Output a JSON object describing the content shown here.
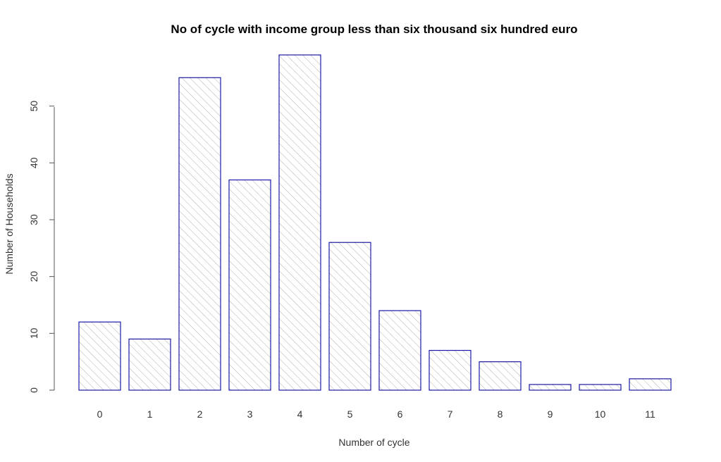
{
  "chart_data": {
    "type": "bar",
    "title": "No of cycle with income group less than six thousand six hundred euro",
    "xlabel": "Number of cycle",
    "ylabel": "Number of Households",
    "categories": [
      "0",
      "1",
      "2",
      "3",
      "4",
      "5",
      "6",
      "7",
      "8",
      "9",
      "10",
      "11"
    ],
    "values": [
      12,
      9,
      55,
      37,
      59,
      26,
      14,
      7,
      5,
      1,
      1,
      2
    ],
    "ylim": [
      0,
      59
    ],
    "yticks": [
      "0",
      "10",
      "20",
      "30",
      "40",
      "50"
    ],
    "grid": false,
    "bar_fill": "hatched",
    "bar_border_color": "#1a1aa6",
    "hatch_color": "#b0b0b0"
  }
}
